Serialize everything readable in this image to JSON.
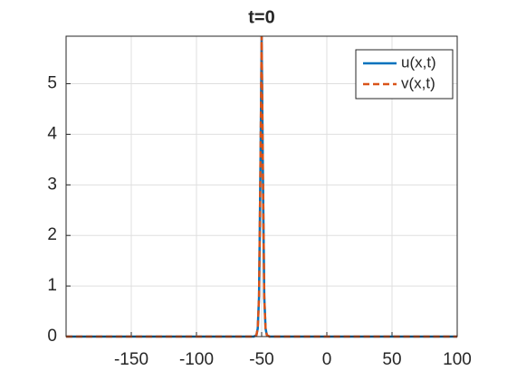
{
  "chart_data": {
    "type": "line",
    "title": "t=0",
    "x": [
      -200,
      -56,
      -54,
      -53,
      -52,
      -51,
      -50,
      -49,
      -48,
      -47,
      -46,
      -44,
      100
    ],
    "series": [
      {
        "name": "u(x,t)",
        "color": "#0072bd",
        "dash": false,
        "values": [
          0,
          0,
          0.03,
          0.16,
          0.79,
          3.17,
          5.94,
          3.17,
          0.79,
          0.16,
          0.03,
          0,
          0
        ]
      },
      {
        "name": "v(x,t)",
        "color": "#d95319",
        "dash": true,
        "values": [
          0,
          0,
          0.03,
          0.16,
          0.79,
          3.17,
          5.94,
          3.17,
          0.79,
          0.16,
          0.03,
          0,
          0
        ]
      }
    ],
    "xlim": [
      -200,
      100
    ],
    "xticks": [
      -150,
      -100,
      -50,
      0,
      50,
      100
    ],
    "ylim": [
      0,
      5.94
    ],
    "yticks": [
      0,
      1,
      2,
      3,
      4,
      5
    ],
    "grid": true,
    "legend": "northeast"
  }
}
